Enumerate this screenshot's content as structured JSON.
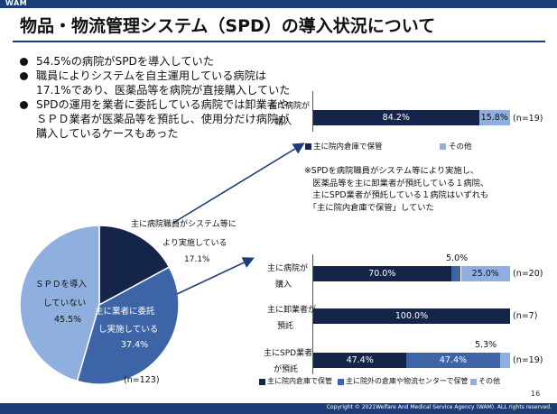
{
  "logo": "WAM",
  "title": "物品・物流管理システム（SPD）の導入状況について",
  "bullets": [
    "54.5%の病院がSPDを導入していた",
    "職員によりシステムを自主運用している病院は17.1%であり、医薬品等を病院が直接購入していた",
    "SPDの運用を業者に委託している病院では卸業者やＳＰＤ業者が医薬品等を預託し、使用分だけ病院が購入しているケースもあった"
  ],
  "pie": {
    "n_label": "(n=123)",
    "slices": [
      {
        "label_lines": [
          "主に病院職員がシステム等に",
          "より実施している"
        ],
        "pct_label": "17.1%",
        "value": 17.1,
        "color": "#15254a"
      },
      {
        "label_lines": [
          "主に業者に委託",
          "し実施している"
        ],
        "pct_label": "37.4%",
        "value": 37.4,
        "color": "#3e64a8"
      },
      {
        "label_lines": [
          "ＳＰＤを導入",
          "していない"
        ],
        "pct_label": "45.5%",
        "value": 45.5,
        "color": "#8fb0df"
      }
    ]
  },
  "top_chart": {
    "row_label_lines": [
      "主に病院が",
      "購入"
    ],
    "segments": [
      {
        "value": 84.2,
        "label": "84.2%",
        "style": "dark"
      },
      {
        "value": 15.8,
        "label": "15.8%",
        "style": "light"
      }
    ],
    "n": "(n=19)",
    "legend": [
      {
        "label": "主に院内倉庫で保管",
        "color": "#15254a"
      },
      {
        "label": "その他",
        "color": "#8fb0df"
      }
    ]
  },
  "note": "※SPDを病院職員がシステム等により実施し、\n　医薬品等を主に卸業者が預託している１病院、\n　主にSPD業者が預託している１病院はいずれも\n　「主に院内倉庫で保管」していた",
  "bottom_chart": {
    "rows": [
      {
        "label_lines": [
          "主に病院が",
          "購入"
        ],
        "n": "(n=20)",
        "callout": "5.0%",
        "segments": [
          {
            "value": 70.0,
            "label": "70.0%",
            "style": "dark"
          },
          {
            "value": 5.0,
            "label": "",
            "style": "mid"
          },
          {
            "value": 25.0,
            "label": "25.0%",
            "style": "light"
          }
        ]
      },
      {
        "label_lines": [
          "主に卸業者が",
          "預託"
        ],
        "n": "(n=7)",
        "callout": "",
        "segments": [
          {
            "value": 100.0,
            "label": "100.0%",
            "style": "dark"
          }
        ]
      },
      {
        "label_lines": [
          "主にSPD業者",
          "が預託"
        ],
        "n": "(n=19)",
        "callout": "5.3%",
        "segments": [
          {
            "value": 47.4,
            "label": "47.4%",
            "style": "dark"
          },
          {
            "value": 47.4,
            "label": "47.4%",
            "style": "mid"
          },
          {
            "value": 5.3,
            "label": "",
            "style": "light"
          }
        ]
      }
    ],
    "legend": [
      {
        "label": "主に院内倉庫で保管",
        "color": "#15254a"
      },
      {
        "label": "主に院外の倉庫や物流センターで保管",
        "color": "#3e64a8"
      },
      {
        "label": "その他",
        "color": "#8fb0df"
      }
    ]
  },
  "page_number": "16",
  "copyright": "Copyright © 2021Welfare And Medical Service Agency (WAM). ALL rights reserved."
}
